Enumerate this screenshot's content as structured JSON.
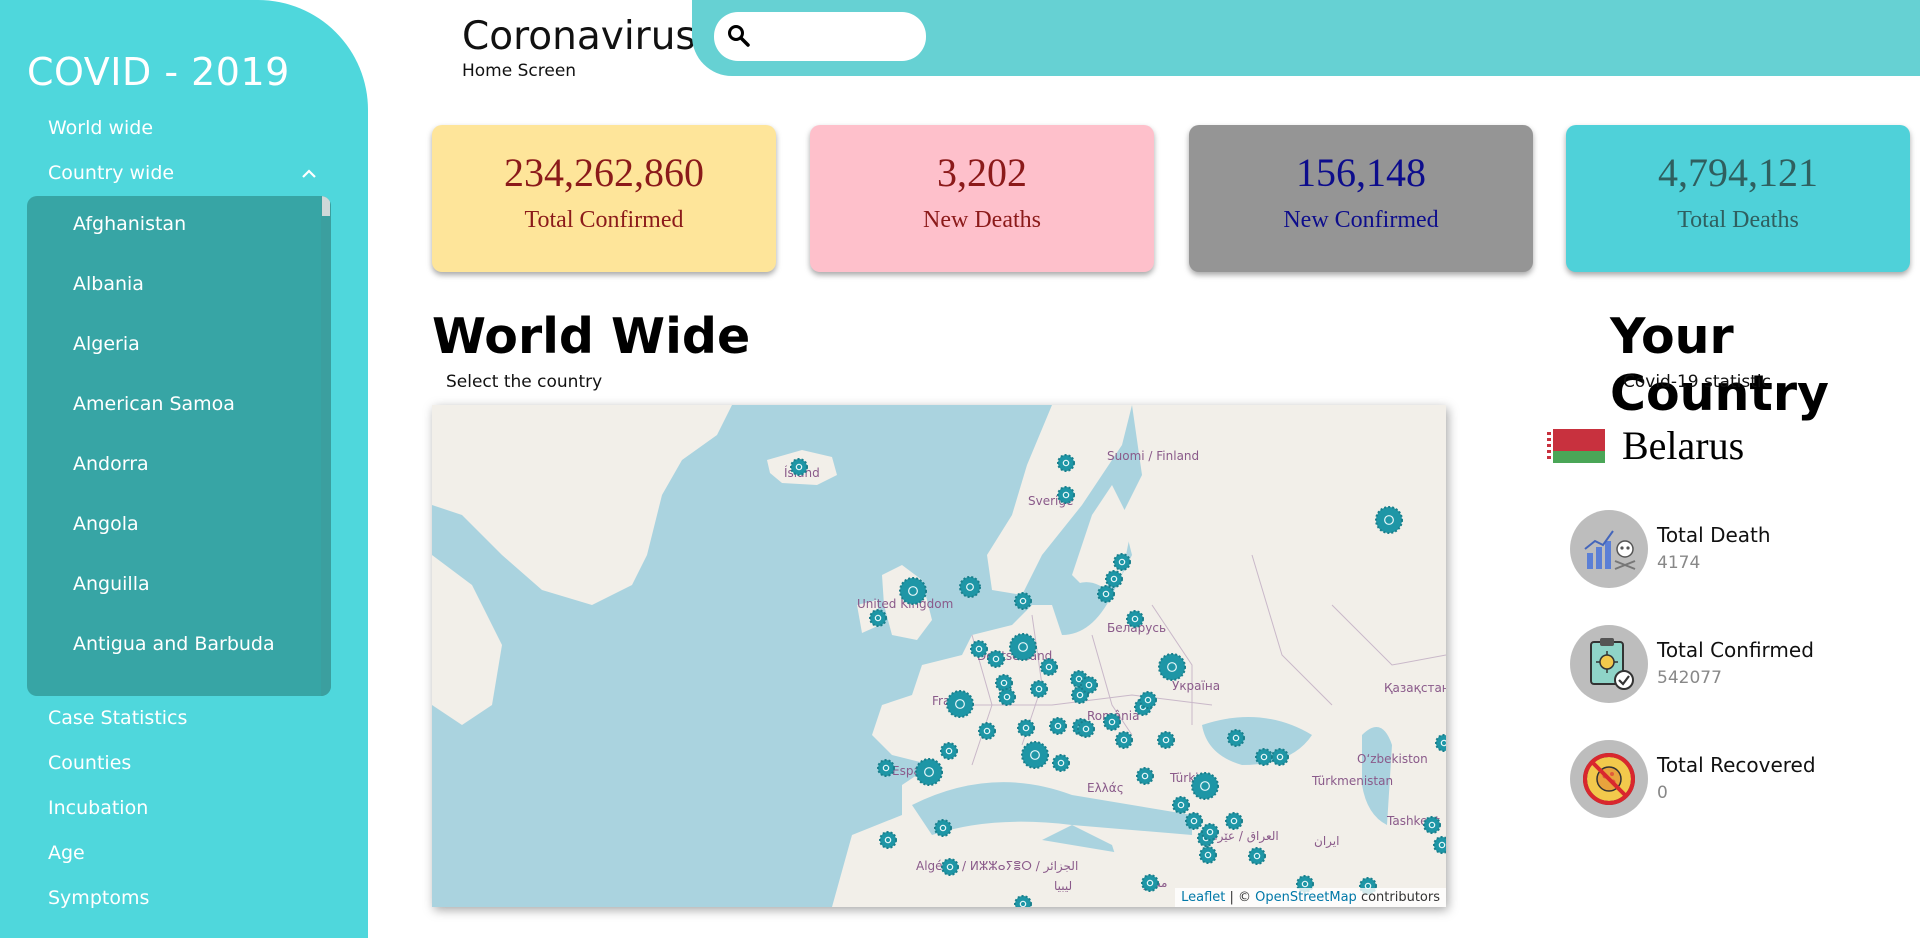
{
  "sidebar": {
    "title": "COVID - 2019",
    "nav": [
      "World wide",
      "Country wide",
      "Case Statistics",
      "Counties",
      "Incubation",
      "Age",
      "Symptoms"
    ],
    "countries": [
      "Afghanistan",
      "Albania",
      "Algeria",
      "American Samoa",
      "Andorra",
      "Angola",
      "Anguilla",
      "Antigua and Barbuda"
    ]
  },
  "header": {
    "title": "Coronavirus",
    "subtitle": "Home Screen",
    "search_placeholder": ""
  },
  "cards": [
    {
      "value": "234,262,860",
      "label": "Total Confirmed",
      "bg": "#fee59a",
      "color": "#8b1a1a"
    },
    {
      "value": "3,202",
      "label": "New Deaths",
      "bg": "#fec0cb",
      "color": "#8b1a1a"
    },
    {
      "value": "156,148",
      "label": "New Confirmed",
      "bg": "#959595",
      "color": "#0d0d8c"
    },
    {
      "value": "4,794,121",
      "label": "Total Deaths",
      "bg": "#4fd1d9",
      "color": "#2f5f5f"
    }
  ],
  "world": {
    "title": "World Wide",
    "subtitle": "Select the country",
    "map_labels": [
      "Ísland",
      "Suomi / Finland",
      "Sverige",
      "United Kingdom",
      "Беларусь",
      "Deutschland",
      "France",
      "España",
      "România",
      "Україна",
      "Қазақстан",
      "Oʻzbekiston",
      "Türkmenistan",
      "Türkiye",
      "Ελλάς",
      "العراق / عێراق",
      "ایران",
      "Algérie / ⵍⵣⵣⴰⵢⴻⵔ / الجزائر",
      "ليبيا",
      "مصر",
      "Tashkent"
    ],
    "attribution_leaflet": "Leaflet",
    "attribution_sep": " | © ",
    "attribution_osm": "OpenStreetMap",
    "attribution_tail": " contributors"
  },
  "your_country": {
    "title": "Your Country",
    "subtitle": "Covid-19 statistic",
    "name": "Belarus",
    "stats": [
      {
        "label": "Total Death",
        "value": "4174",
        "icon": "death-chart-icon"
      },
      {
        "label": "Total Confirmed",
        "value": "542077",
        "icon": "clipboard-virus-icon"
      },
      {
        "label": "Total Recovered",
        "value": "0",
        "icon": "no-virus-icon"
      }
    ]
  },
  "colors": {
    "sidebar": "#4fd7dc",
    "panel": "#37a5a5",
    "header_bar": "#66d1d3",
    "marker": "#1e96a6"
  }
}
